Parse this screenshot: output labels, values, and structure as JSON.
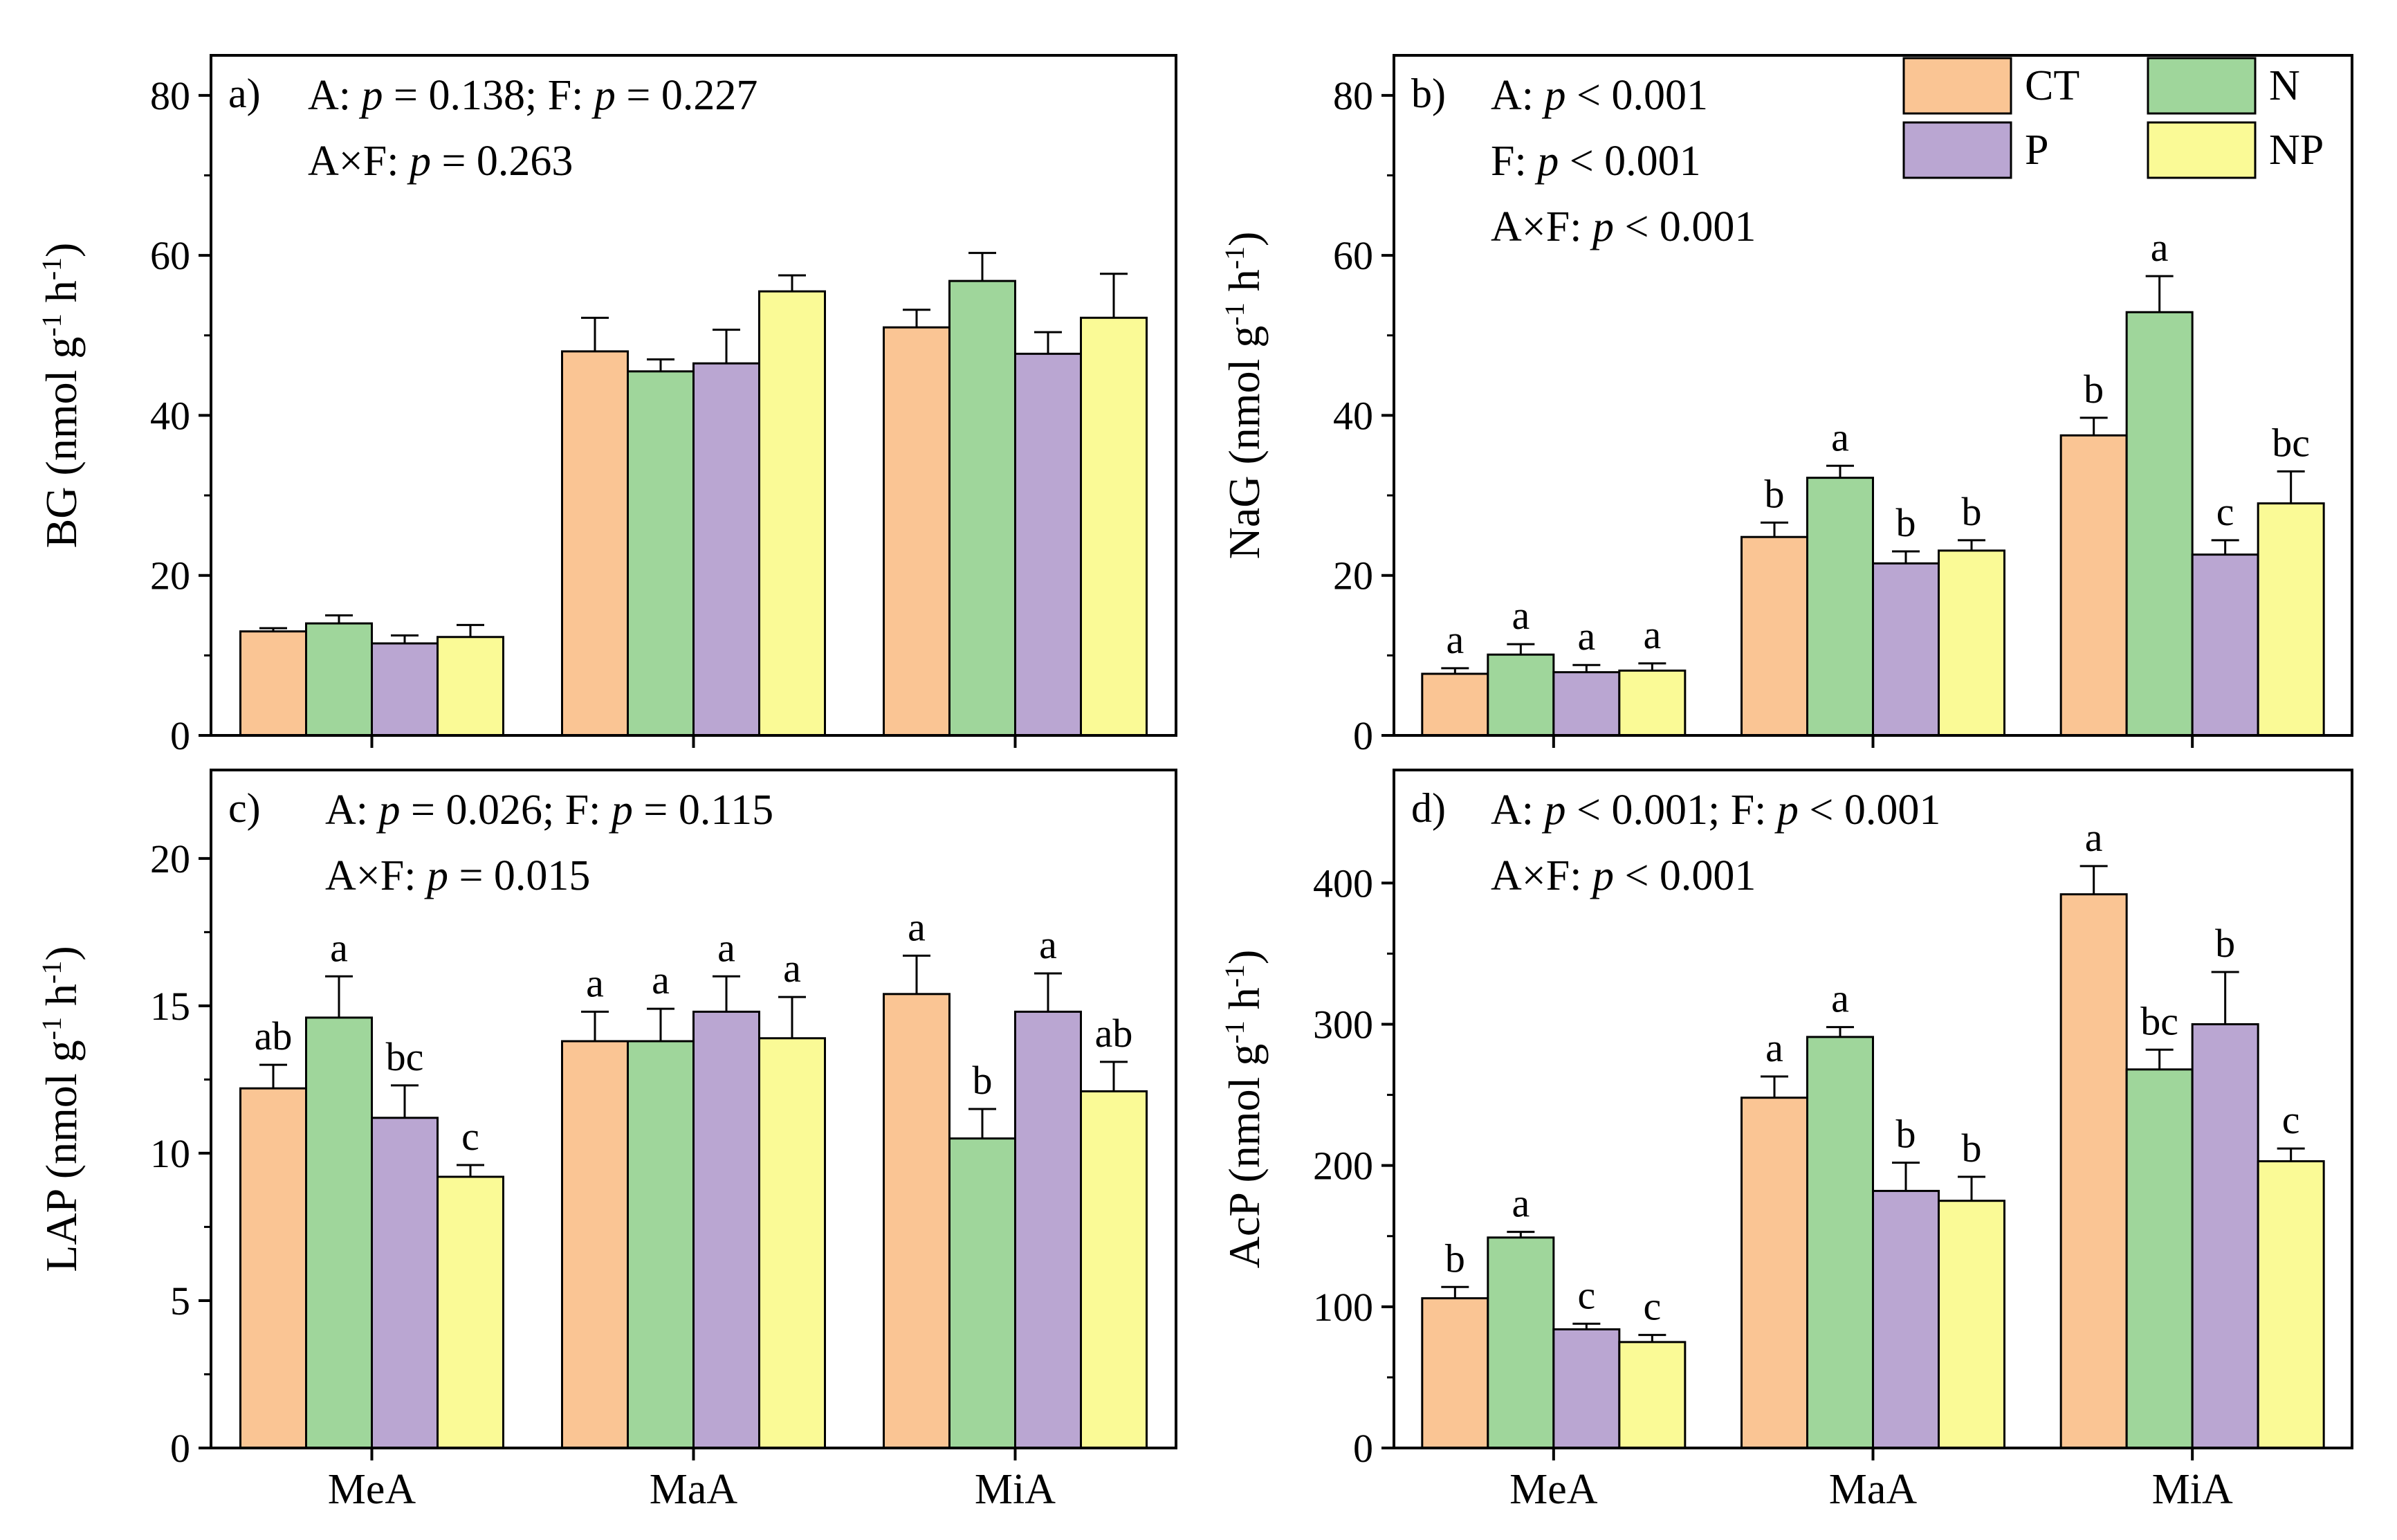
{
  "chart_data": [
    {
      "type": "bar",
      "panel": "a)",
      "ylabel": {
        "main": "BG (nmol g",
        "exp1": "-1",
        "mid": " h",
        "exp2": "-1",
        "end": ")"
      },
      "ylim": [
        0,
        85
      ],
      "yticks": [
        0,
        20,
        40,
        60,
        80
      ],
      "categories": [
        "MeA",
        "MaA",
        "MiA"
      ],
      "show_xlabels": false,
      "stats": [
        [
          {
            "t": "A: ",
            "i": false
          },
          {
            "t": "p",
            "i": true
          },
          {
            "t": " = 0.138; F: ",
            "i": false
          },
          {
            "t": "p",
            "i": true
          },
          {
            "t": " = 0.227",
            "i": false
          }
        ],
        [
          {
            "t": "A×F: ",
            "i": false
          },
          {
            "t": "p",
            "i": true
          },
          {
            "t": " = 0.263",
            "i": false
          }
        ]
      ],
      "series": [
        {
          "name": "CT",
          "values": [
            13,
            48,
            51
          ],
          "errors": [
            0.4,
            4.2,
            2.2
          ],
          "letters": [
            "",
            "",
            ""
          ]
        },
        {
          "name": "N",
          "values": [
            14,
            45.5,
            56.8
          ],
          "errors": [
            1.0,
            1.5,
            3.5
          ],
          "letters": [
            "",
            "",
            ""
          ]
        },
        {
          "name": "P",
          "values": [
            11.5,
            46.5,
            47.7
          ],
          "errors": [
            1.0,
            4.2,
            2.7
          ],
          "letters": [
            "",
            "",
            ""
          ]
        },
        {
          "name": "NP",
          "values": [
            12.3,
            55.5,
            52.2
          ],
          "errors": [
            1.5,
            2.0,
            5.5
          ],
          "letters": [
            "",
            "",
            ""
          ]
        }
      ]
    },
    {
      "type": "bar",
      "panel": "b)",
      "ylabel": {
        "main": "NaG (nmol g",
        "exp1": "-1",
        "mid": " h",
        "exp2": "-1",
        "end": ")"
      },
      "ylim": [
        0,
        85
      ],
      "yticks": [
        0,
        20,
        40,
        60,
        80
      ],
      "categories": [
        "MeA",
        "MaA",
        "MiA"
      ],
      "show_xlabels": false,
      "stats": [
        [
          {
            "t": "A: ",
            "i": false
          },
          {
            "t": "p",
            "i": true
          },
          {
            "t": " < 0.001",
            "i": false
          }
        ],
        [
          {
            "t": "F: ",
            "i": false
          },
          {
            "t": "p",
            "i": true
          },
          {
            "t": " < 0.001",
            "i": false
          }
        ],
        [
          {
            "t": "A×F: ",
            "i": false
          },
          {
            "t": "p",
            "i": true
          },
          {
            "t": " < 0.001",
            "i": false
          }
        ]
      ],
      "legend": [
        "CT",
        "N",
        "P",
        "NP"
      ],
      "series": [
        {
          "name": "CT",
          "values": [
            7.7,
            24.8,
            37.5
          ],
          "errors": [
            0.7,
            1.8,
            2.2
          ],
          "letters": [
            "a",
            "b",
            "b"
          ]
        },
        {
          "name": "N",
          "values": [
            10.1,
            32.2,
            52.9
          ],
          "errors": [
            1.3,
            1.5,
            4.5
          ],
          "letters": [
            "a",
            "a",
            "a"
          ]
        },
        {
          "name": "P",
          "values": [
            7.9,
            21.5,
            22.6
          ],
          "errors": [
            0.9,
            1.5,
            1.8
          ],
          "letters": [
            "a",
            "b",
            "c"
          ]
        },
        {
          "name": "NP",
          "values": [
            8.1,
            23.1,
            29.0
          ],
          "errors": [
            0.9,
            1.3,
            4.0
          ],
          "letters": [
            "a",
            "b",
            "bc"
          ]
        }
      ]
    },
    {
      "type": "bar",
      "panel": "c)",
      "ylabel": {
        "main": "LAP (nmol g",
        "exp1": "-1",
        "mid": " h",
        "exp2": "-1",
        "end": ")"
      },
      "ylim": [
        0,
        23
      ],
      "yticks": [
        0,
        5,
        10,
        15,
        20
      ],
      "categories": [
        "MeA",
        "MaA",
        "MiA"
      ],
      "show_xlabels": true,
      "stats": [
        [
          {
            "t": "A: ",
            "i": false
          },
          {
            "t": "p",
            "i": true
          },
          {
            "t": " = 0.026;  F: ",
            "i": false
          },
          {
            "t": "p",
            "i": true
          },
          {
            "t": " = 0.115",
            "i": false
          }
        ],
        [
          {
            "t": "A×F: ",
            "i": false
          },
          {
            "t": "p",
            "i": true
          },
          {
            "t": " = 0.015",
            "i": false
          }
        ]
      ],
      "series": [
        {
          "name": "CT",
          "values": [
            12.2,
            13.8,
            15.4
          ],
          "errors": [
            0.8,
            1.0,
            1.3
          ],
          "letters": [
            "ab",
            "a",
            "a"
          ]
        },
        {
          "name": "N",
          "values": [
            14.6,
            13.8,
            10.5
          ],
          "errors": [
            1.4,
            1.1,
            1.0
          ],
          "letters": [
            "a",
            "a",
            "b"
          ]
        },
        {
          "name": "P",
          "values": [
            11.2,
            14.8,
            14.8
          ],
          "errors": [
            1.1,
            1.2,
            1.3
          ],
          "letters": [
            "bc",
            "a",
            "a"
          ]
        },
        {
          "name": "NP",
          "values": [
            9.2,
            13.9,
            12.1
          ],
          "errors": [
            0.4,
            1.4,
            1.0
          ],
          "letters": [
            "c",
            "a",
            "ab"
          ]
        }
      ]
    },
    {
      "type": "bar",
      "panel": "d)",
      "ylabel": {
        "main": "AcP (nmol g",
        "exp1": "-1",
        "mid": " h",
        "exp2": "-1",
        "end": ")"
      },
      "ylim": [
        0,
        480
      ],
      "yticks": [
        0,
        100,
        200,
        300,
        400
      ],
      "categories": [
        "MeA",
        "MaA",
        "MiA"
      ],
      "show_xlabels": true,
      "stats": [
        [
          {
            "t": "A: ",
            "i": false
          },
          {
            "t": "p",
            "i": true
          },
          {
            "t": " < 0.001; F: ",
            "i": false
          },
          {
            "t": "p",
            "i": true
          },
          {
            "t": " < 0.001",
            "i": false
          }
        ],
        [
          {
            "t": "A×F: ",
            "i": false
          },
          {
            "t": "p",
            "i": true
          },
          {
            "t": " < 0.001",
            "i": false
          }
        ]
      ],
      "series": [
        {
          "name": "CT",
          "values": [
            106,
            248,
            392
          ],
          "errors": [
            8,
            15,
            20
          ],
          "letters": [
            "b",
            "a",
            "a"
          ]
        },
        {
          "name": "N",
          "values": [
            149,
            291,
            268
          ],
          "errors": [
            4,
            7,
            14
          ],
          "letters": [
            "a",
            "a",
            "bc"
          ]
        },
        {
          "name": "P",
          "values": [
            84,
            182,
            300
          ],
          "errors": [
            4,
            20,
            37
          ],
          "letters": [
            "c",
            "b",
            "b"
          ]
        },
        {
          "name": "NP",
          "values": [
            75,
            175,
            203
          ],
          "errors": [
            5,
            17,
            9
          ],
          "letters": [
            "c",
            "b",
            "c"
          ]
        }
      ]
    }
  ],
  "colors": {
    "CT": "#FAC594",
    "N": "#9FD69B",
    "P": "#BAA6D2",
    "NP": "#FAFA96"
  }
}
